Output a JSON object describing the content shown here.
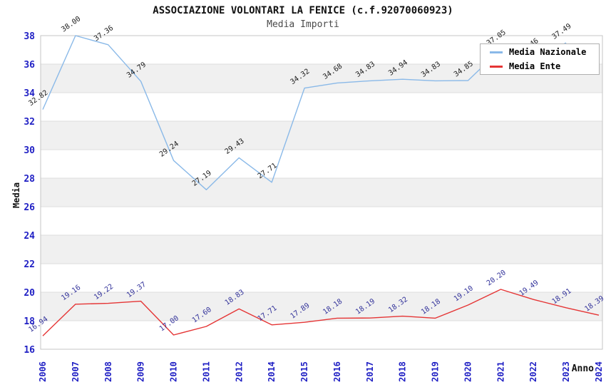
{
  "header": {
    "title": "ASSOCIAZIONE VOLONTARI LA FENICE (c.f.92070060923)",
    "subtitle": "Media Importi"
  },
  "legend": {
    "items": [
      {
        "label": "Media Nazionale",
        "color": "#8ab9e8"
      },
      {
        "label": "Media Ente",
        "color": "#e53535"
      }
    ]
  },
  "chart_data": {
    "type": "line",
    "title": "ASSOCIAZIONE VOLONTARI LA FENICE (c.f.92070060923)",
    "subtitle": "Media Importi",
    "xlabel": "Anno",
    "ylabel": "Media",
    "categories": [
      "2006",
      "2007",
      "2008",
      "2009",
      "2010",
      "2011",
      "2012",
      "2014",
      "2015",
      "2016",
      "2017",
      "2018",
      "2019",
      "2020",
      "2021",
      "2022",
      "2023",
      "2024"
    ],
    "series": [
      {
        "name": "Media Nazionale",
        "color": "#8ab9e8",
        "label_color": "#1c1c1c",
        "values": [
          32.82,
          38.0,
          37.36,
          34.79,
          29.24,
          27.19,
          29.43,
          27.71,
          34.32,
          34.68,
          34.83,
          34.94,
          34.83,
          34.85,
          37.05,
          36.46,
          37.49,
          null
        ]
      },
      {
        "name": "Media Ente",
        "color": "#e53535",
        "label_color": "#32329a",
        "values": [
          16.94,
          19.16,
          19.22,
          19.37,
          17.0,
          17.6,
          18.83,
          17.71,
          17.89,
          18.18,
          18.19,
          18.32,
          18.18,
          19.1,
          20.2,
          19.49,
          18.91,
          18.39
        ]
      }
    ],
    "ylim": [
      16,
      38
    ],
    "ytick_step": 2,
    "grid": true,
    "band_color": "#f0f0f0",
    "gridline_color": "#dedede",
    "frame_color": "#c6c6c6",
    "axis_text_color": "#1f1fc4",
    "axis_title_color": "#111111",
    "legend_position": "top-right"
  }
}
